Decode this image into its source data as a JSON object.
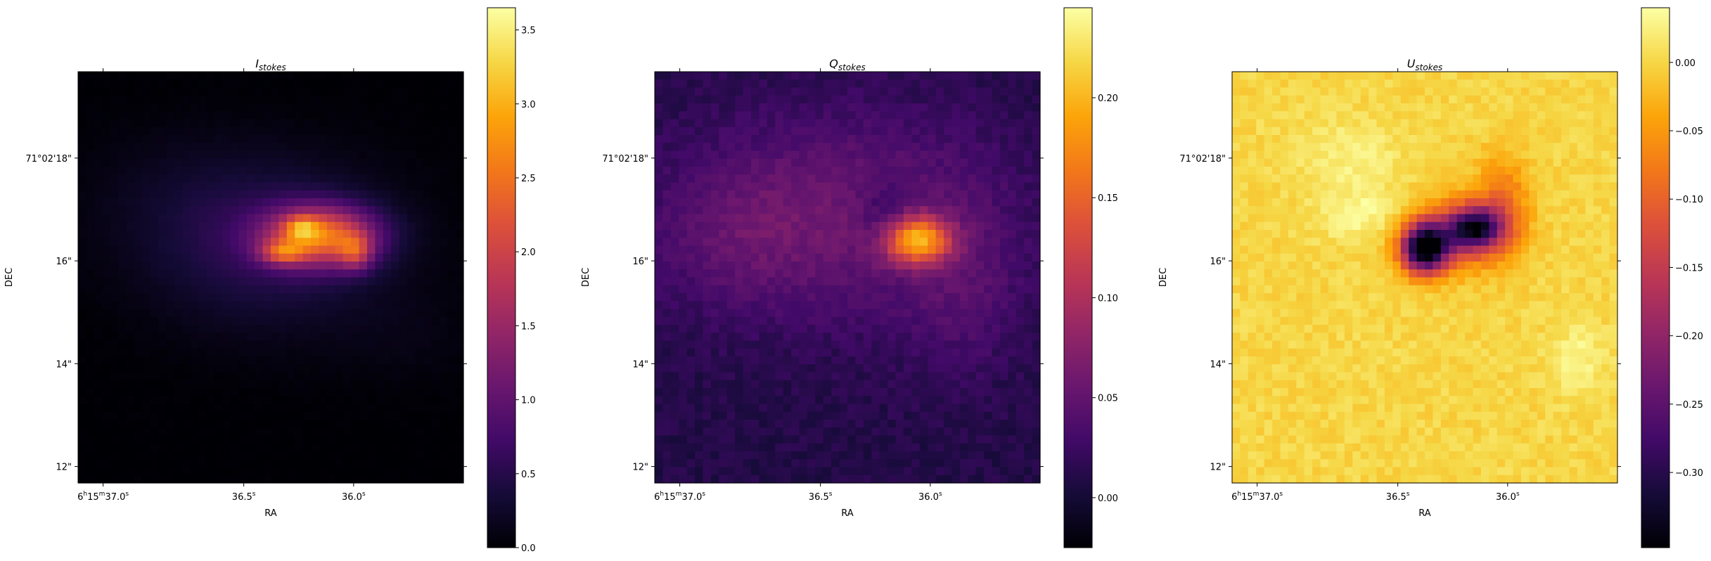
{
  "chart_data": [
    {
      "type": "heatmap",
      "title_base": "I",
      "title_sub": "stokes",
      "xlabel": "RA",
      "ylabel": "DEC",
      "x_ticks": [
        {
          "h": "6",
          "m": "15",
          "s": "37.0",
          "label": "6h15m37.0s"
        },
        {
          "s": "36.5",
          "label": "36.5s"
        },
        {
          "s": "36.0",
          "label": "36.0s"
        }
      ],
      "y_ticks": [
        "71°02'18\"",
        "16\"",
        "14\"",
        "12\""
      ],
      "colormap": "inferno",
      "colorbar": {
        "min": 0.0,
        "max": 3.65,
        "ticks": [
          "0.0",
          "0.5",
          "1.0",
          "1.5",
          "2.0",
          "2.5",
          "3.0",
          "3.5"
        ],
        "tick_values": [
          0,
          0.5,
          1,
          1.5,
          2,
          2.5,
          3,
          3.5
        ]
      },
      "features": [
        {
          "kind": "blob",
          "cx": 0.5,
          "cy": 0.42,
          "sx": 0.22,
          "sy": 0.14,
          "amp": 0.55
        },
        {
          "kind": "blob",
          "cx": 0.63,
          "cy": 0.4,
          "sx": 0.1,
          "sy": 0.05,
          "amp": 2.2
        },
        {
          "kind": "blob",
          "cx": 0.53,
          "cy": 0.44,
          "sx": 0.04,
          "sy": 0.02,
          "amp": 1.2
        },
        {
          "kind": "blob",
          "cx": 0.72,
          "cy": 0.44,
          "sx": 0.03,
          "sy": 0.03,
          "amp": 1.0
        },
        {
          "kind": "blob",
          "cx": 0.58,
          "cy": 0.38,
          "sx": 0.03,
          "sy": 0.02,
          "amp": 1.0
        },
        {
          "kind": "blob",
          "cx": 0.25,
          "cy": 0.3,
          "sx": 0.18,
          "sy": 0.12,
          "amp": 0.12
        },
        {
          "kind": "blob",
          "cx": 0.85,
          "cy": 0.65,
          "sx": 0.12,
          "sy": 0.08,
          "amp": 0.08
        }
      ],
      "peak": {
        "value": 3.65,
        "px": 0.63,
        "py": 0.39
      }
    },
    {
      "type": "heatmap",
      "title_base": "Q",
      "title_sub": "stokes",
      "xlabel": "RA",
      "ylabel": "DEC",
      "x_ticks": [
        {
          "h": "6",
          "m": "15",
          "s": "37.0",
          "label": "6h15m37.0s"
        },
        {
          "s": "36.5",
          "label": "36.5s"
        },
        {
          "s": "36.0",
          "label": "36.0s"
        }
      ],
      "y_ticks": [
        "71°02'18\"",
        "16\"",
        "14\"",
        "12\""
      ],
      "colormap": "inferno",
      "colorbar": {
        "min": -0.025,
        "max": 0.245,
        "ticks": [
          "0.00",
          "0.05",
          "0.10",
          "0.15",
          "0.20"
        ],
        "tick_values": [
          0,
          0.05,
          0.1,
          0.15,
          0.2
        ]
      },
      "features": [
        {
          "kind": "blob",
          "cx": 0.68,
          "cy": 0.41,
          "sx": 0.06,
          "sy": 0.04,
          "amp": 0.16
        },
        {
          "kind": "blob",
          "cx": 0.5,
          "cy": 0.35,
          "sx": 0.3,
          "sy": 0.18,
          "amp": 0.045
        },
        {
          "kind": "blob",
          "cx": 0.2,
          "cy": 0.4,
          "sx": 0.15,
          "sy": 0.12,
          "amp": 0.02
        },
        {
          "kind": "blob",
          "cx": 0.8,
          "cy": 0.55,
          "sx": 0.1,
          "sy": 0.15,
          "amp": 0.02
        },
        {
          "kind": "blob",
          "cx": 0.6,
          "cy": 0.35,
          "sx": 0.05,
          "sy": 0.06,
          "amp": -0.03
        }
      ],
      "baseline": 0.01,
      "peak": {
        "value": 0.24,
        "px": 0.65,
        "py": 0.4
      }
    },
    {
      "type": "heatmap",
      "title_base": "U",
      "title_sub": "stokes",
      "xlabel": "RA",
      "ylabel": "DEC",
      "x_ticks": [
        {
          "h": "6",
          "m": "15",
          "s": "37.0",
          "label": "6h15m37.0s"
        },
        {
          "s": "36.5",
          "label": "36.5s"
        },
        {
          "s": "36.0",
          "label": "36.0s"
        }
      ],
      "y_ticks": [
        "71°02'18\"",
        "16\"",
        "14\"",
        "12\""
      ],
      "colormap": "inferno",
      "colorbar": {
        "min": -0.355,
        "max": 0.04,
        "ticks": [
          "0.00",
          "−0.05",
          "−0.10",
          "−0.15",
          "−0.20",
          "−0.25",
          "−0.30"
        ],
        "tick_values": [
          0,
          -0.05,
          -0.1,
          -0.15,
          -0.2,
          -0.25,
          -0.3
        ]
      },
      "features": [
        {
          "kind": "blob",
          "cx": 0.5,
          "cy": 0.43,
          "sx": 0.04,
          "sy": 0.04,
          "amp": -0.34
        },
        {
          "kind": "blob",
          "cx": 0.63,
          "cy": 0.38,
          "sx": 0.05,
          "sy": 0.035,
          "amp": -0.25
        },
        {
          "kind": "blob",
          "cx": 0.57,
          "cy": 0.4,
          "sx": 0.09,
          "sy": 0.06,
          "amp": -0.12
        },
        {
          "kind": "blob",
          "cx": 0.7,
          "cy": 0.32,
          "sx": 0.05,
          "sy": 0.08,
          "amp": -0.08
        },
        {
          "kind": "blob",
          "cx": 0.35,
          "cy": 0.35,
          "sx": 0.08,
          "sy": 0.05,
          "amp": 0.035
        },
        {
          "kind": "blob",
          "cx": 0.9,
          "cy": 0.7,
          "sx": 0.05,
          "sy": 0.06,
          "amp": 0.03
        },
        {
          "kind": "blob",
          "cx": 0.3,
          "cy": 0.2,
          "sx": 0.1,
          "sy": 0.06,
          "amp": 0.025
        }
      ],
      "baseline": 0.0,
      "peak": {
        "value": -0.355,
        "px": 0.5,
        "py": 0.43
      }
    }
  ]
}
